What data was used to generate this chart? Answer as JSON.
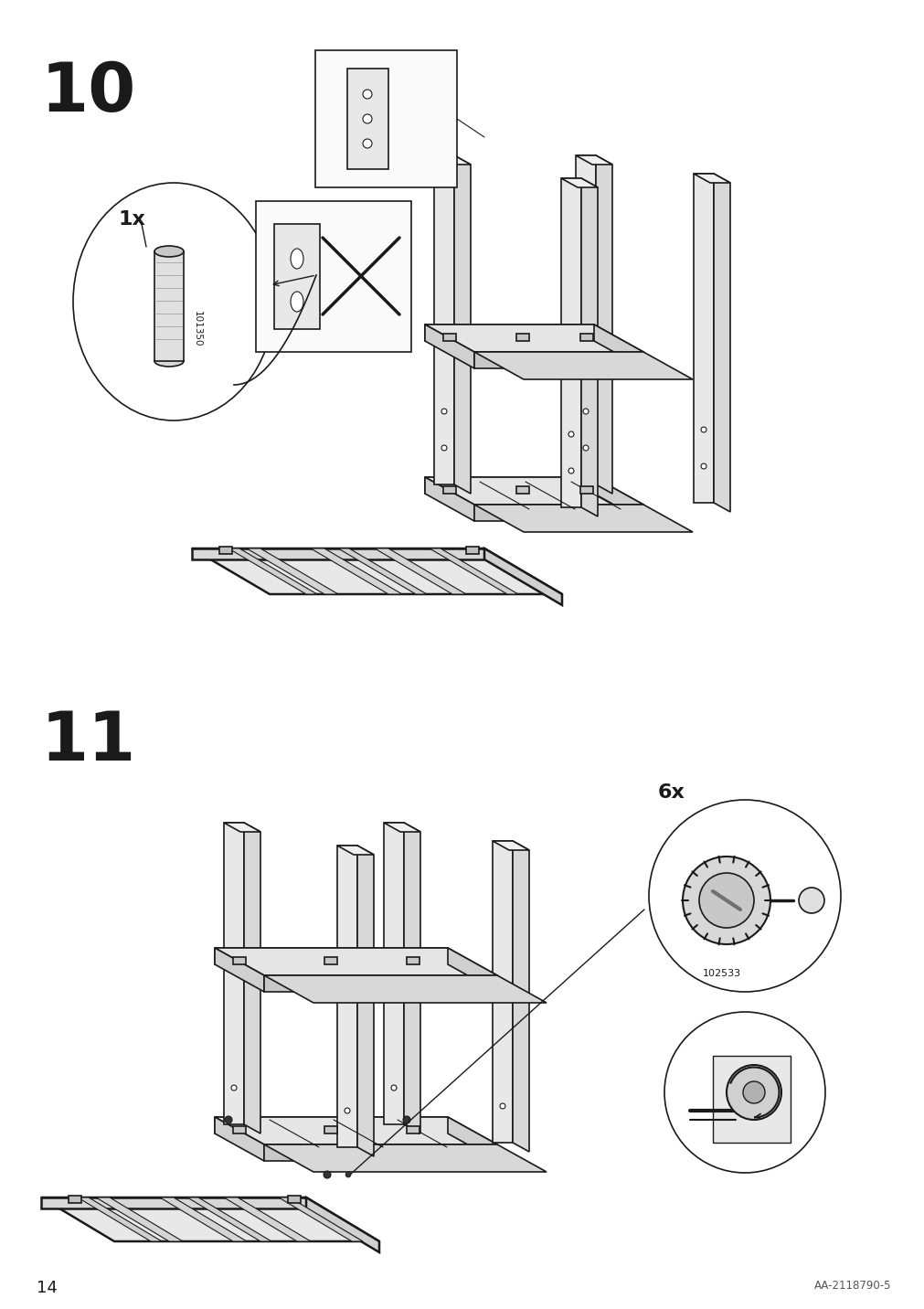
{
  "page_number": "14",
  "doc_ref": "AA-2118790-5",
  "step10_number": "10",
  "step11_number": "11",
  "bg_color": "#ffffff",
  "lc": "#1a1a1a",
  "step10_quantity": "1x",
  "step10_part_id": "101350",
  "step11_quantity": "6x",
  "step11_part_id": "102533"
}
